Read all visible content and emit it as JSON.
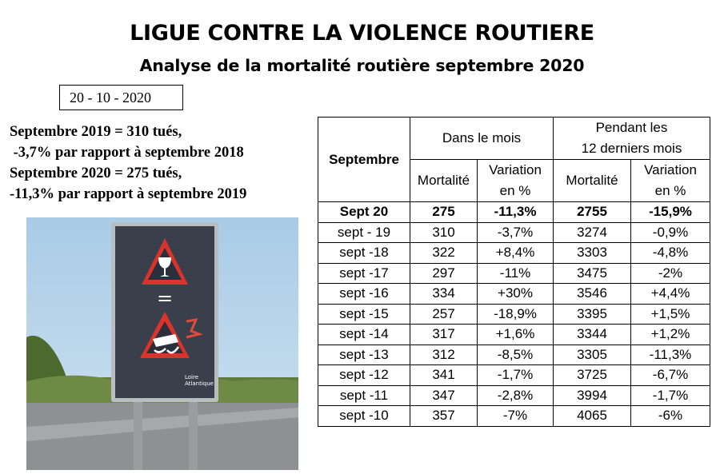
{
  "title": "LIGUE CONTRE LA VIOLENCE ROUTIERE",
  "subtitle": "Analyse de la mortalité routière septembre 2020",
  "date": "20 - 10 - 2020",
  "summary": {
    "line1": "Septembre 2019 = 310 tués,",
    "line2": " -3,7% par rapport à septembre 2018",
    "line3": "Septembre 2020 = 275 tués,",
    "line4": "-11,3% par rapport à septembre 2019"
  },
  "photo": {
    "sign_caption_1": "Loire",
    "sign_caption_2": "Atlantique",
    "sign_equals": "="
  },
  "table": {
    "corner": "Septembre",
    "group_month": "Dans le mois",
    "group_12_line1": "Pendant les",
    "group_12_line2": "12 derniers mois",
    "col_mortalite": "Mortalité",
    "col_variation_line1": "Variation",
    "col_variation_line2": "en %",
    "rows": [
      {
        "label": "Sept 20",
        "m": "275",
        "v": "-11,3%",
        "m12": "2755",
        "v12": "-15,9%"
      },
      {
        "label": "sept - 19",
        "m": "310",
        "v": "-3,7%",
        "m12": "3274",
        "v12": "-0,9%"
      },
      {
        "label": "sept -18",
        "m": "322",
        "v": "+8,4%",
        "m12": "3303",
        "v12": "-4,8%"
      },
      {
        "label": "sept -17",
        "m": "297",
        "v": "-11%",
        "m12": "3475",
        "v12": "-2%"
      },
      {
        "label": "sept -16",
        "m": "334",
        "v": "+30%",
        "m12": "3546",
        "v12": "+4,4%"
      },
      {
        "label": "sept -15",
        "m": "257",
        "v": "-18,9%",
        "m12": "3395",
        "v12": "+1,5%"
      },
      {
        "label": "sept -14",
        "m": "317",
        "v": "+1,6%",
        "m12": "3344",
        "v12": "+1,2%"
      },
      {
        "label": "sept -13",
        "m": "312",
        "v": "-8,5%",
        "m12": "3305",
        "v12": "-11,3%"
      },
      {
        "label": "sept -12",
        "m": "341",
        "v": "-1,7%",
        "m12": "3725",
        "v12": "-6,7%"
      },
      {
        "label": "sept -11",
        "m": "347",
        "v": "-2,8%",
        "m12": "3994",
        "v12": "-1,7%"
      },
      {
        "label": "sept -10",
        "m": "357",
        "v": "-7%",
        "m12": "4065",
        "v12": "-6%"
      }
    ]
  }
}
